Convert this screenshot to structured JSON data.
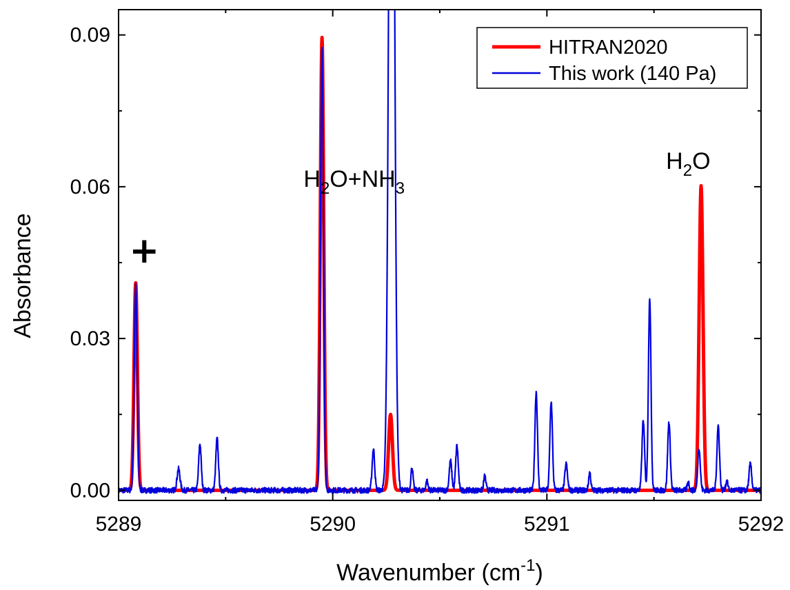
{
  "chart_data": {
    "type": "line",
    "xlabel": "Wavenumber (cm",
    "xlabel_sup": "-1",
    "xlabel_end": ")",
    "ylabel": "Absorbance",
    "xlim": [
      5289,
      5292
    ],
    "ylim": [
      -0.002,
      0.095
    ],
    "x_ticks": [
      5289,
      5290,
      5291,
      5292
    ],
    "x_tick_labels": [
      "5289",
      "5290",
      "5291",
      "5292"
    ],
    "y_ticks": [
      0.0,
      0.03,
      0.06,
      0.09
    ],
    "y_tick_labels": [
      "0.00",
      "0.03",
      "0.06",
      "0.09"
    ],
    "grid": false,
    "legend_position": "top-right",
    "series": [
      {
        "name": "HITRAN2020",
        "color": "#ff0000",
        "peaks": [
          {
            "x": 5289.08,
            "y": 0.041,
            "w": 0.008
          },
          {
            "x": 5289.95,
            "y": 0.0895,
            "w": 0.008
          },
          {
            "x": 5290.27,
            "y": 0.015,
            "w": 0.009
          },
          {
            "x": 5291.72,
            "y": 0.0602,
            "w": 0.009
          }
        ]
      },
      {
        "name": "This work (140 Pa)",
        "color": "#0000dd",
        "peaks": [
          {
            "x": 5289.08,
            "y": 0.0405,
            "w": 0.007
          },
          {
            "x": 5289.28,
            "y": 0.0042,
            "w": 0.007
          },
          {
            "x": 5289.38,
            "y": 0.0092,
            "w": 0.006
          },
          {
            "x": 5289.46,
            "y": 0.0102,
            "w": 0.006
          },
          {
            "x": 5289.95,
            "y": 0.088,
            "w": 0.007
          },
          {
            "x": 5290.19,
            "y": 0.0082,
            "w": 0.006
          },
          {
            "x": 5290.275,
            "y": 0.2,
            "w": 0.012
          },
          {
            "x": 5290.37,
            "y": 0.0045,
            "w": 0.005
          },
          {
            "x": 5290.44,
            "y": 0.0018,
            "w": 0.005
          },
          {
            "x": 5290.55,
            "y": 0.0058,
            "w": 0.006
          },
          {
            "x": 5290.58,
            "y": 0.0088,
            "w": 0.006
          },
          {
            "x": 5290.71,
            "y": 0.0028,
            "w": 0.005
          },
          {
            "x": 5290.95,
            "y": 0.0195,
            "w": 0.006
          },
          {
            "x": 5291.02,
            "y": 0.0176,
            "w": 0.006
          },
          {
            "x": 5291.09,
            "y": 0.0052,
            "w": 0.006
          },
          {
            "x": 5291.2,
            "y": 0.0035,
            "w": 0.005
          },
          {
            "x": 5291.45,
            "y": 0.0138,
            "w": 0.006
          },
          {
            "x": 5291.48,
            "y": 0.0382,
            "w": 0.006
          },
          {
            "x": 5291.57,
            "y": 0.0135,
            "w": 0.006
          },
          {
            "x": 5291.66,
            "y": 0.0016,
            "w": 0.005
          },
          {
            "x": 5291.71,
            "y": 0.0085,
            "w": 0.006
          },
          {
            "x": 5291.8,
            "y": 0.0128,
            "w": 0.006
          },
          {
            "x": 5291.84,
            "y": 0.0018,
            "w": 0.005
          },
          {
            "x": 5291.95,
            "y": 0.0052,
            "w": 0.006
          }
        ]
      }
    ],
    "annotations": [
      {
        "text": "+",
        "x": 5289.12,
        "y": 0.045
      },
      {
        "text": "H",
        "sub": "2",
        "rest": "O+NH",
        "sub2": "3",
        "x": 5290.1,
        "y": 0.06
      },
      {
        "text": "H",
        "sub": "2",
        "rest": "O",
        "x": 5291.66,
        "y": 0.0635
      }
    ]
  }
}
